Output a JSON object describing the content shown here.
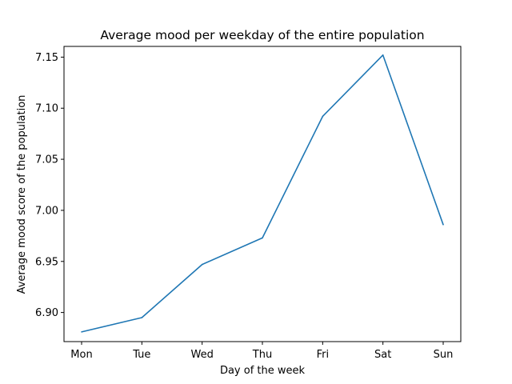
{
  "chart_data": {
    "type": "line",
    "title": "Average mood per weekday of the entire population",
    "xlabel": "Day of the week",
    "ylabel": "Average mood score of the population",
    "categories": [
      "Mon",
      "Tue",
      "Wed",
      "Thu",
      "Fri",
      "Sat",
      "Sun"
    ],
    "series": [
      {
        "values": [
          6.881,
          6.895,
          6.947,
          6.973,
          7.092,
          7.152,
          6.986
        ],
        "color": "#1f77b4"
      }
    ],
    "yticks": [
      "6.90",
      "6.95",
      "7.00",
      "7.05",
      "7.10",
      "7.15"
    ],
    "ylim": [
      6.8715,
      7.1605
    ],
    "grid": false,
    "legend": "none"
  }
}
